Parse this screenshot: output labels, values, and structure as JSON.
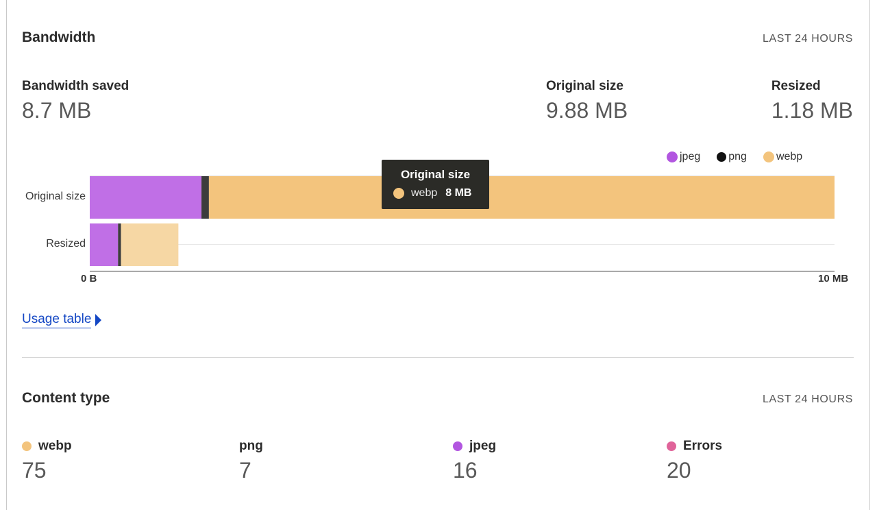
{
  "bandwidth": {
    "title": "Bandwidth",
    "range": "LAST 24 HOURS",
    "metrics": [
      {
        "label": "Bandwidth saved",
        "value": "8.7 MB"
      },
      {
        "label": "Original size",
        "value": "9.88 MB"
      },
      {
        "label": "Resized",
        "value": "1.18 MB"
      }
    ]
  },
  "chart_data": {
    "type": "bar",
    "orientation": "horizontal",
    "stacked": true,
    "categories": [
      "Original size",
      "Resized"
    ],
    "series": [
      {
        "name": "jpeg",
        "values": [
          1.5,
          0.38
        ],
        "color": "#c06fe6"
      },
      {
        "name": "png",
        "values": [
          0.1,
          0.04
        ],
        "color": "#3c3c3c"
      },
      {
        "name": "webp",
        "values": [
          8.4,
          0.77
        ],
        "color": "#f3c47d"
      }
    ],
    "xlim": [
      0,
      10
    ],
    "x_tick_labels": [
      "0 B",
      "10 MB"
    ],
    "legend": [
      {
        "name": "jpeg",
        "color": "#b256e0"
      },
      {
        "name": "png",
        "color": "#111111"
      },
      {
        "name": "webp",
        "color": "#f3c47d"
      }
    ],
    "tooltip": {
      "title": "Original size",
      "series": "webp",
      "value": "8 MB",
      "color": "#f3c47d"
    }
  },
  "usage_link": {
    "label": "Usage table"
  },
  "content_type": {
    "title": "Content type",
    "range": "LAST 24 HOURS",
    "items": [
      {
        "label": "webp",
        "value": "75",
        "color": "#f3c47d",
        "has_dot": true
      },
      {
        "label": "png",
        "value": "7",
        "color": "",
        "has_dot": false
      },
      {
        "label": "jpeg",
        "value": "16",
        "color": "#b256e0",
        "has_dot": true
      },
      {
        "label": "Errors",
        "value": "20",
        "color": "#e0649a",
        "has_dot": true
      }
    ]
  }
}
